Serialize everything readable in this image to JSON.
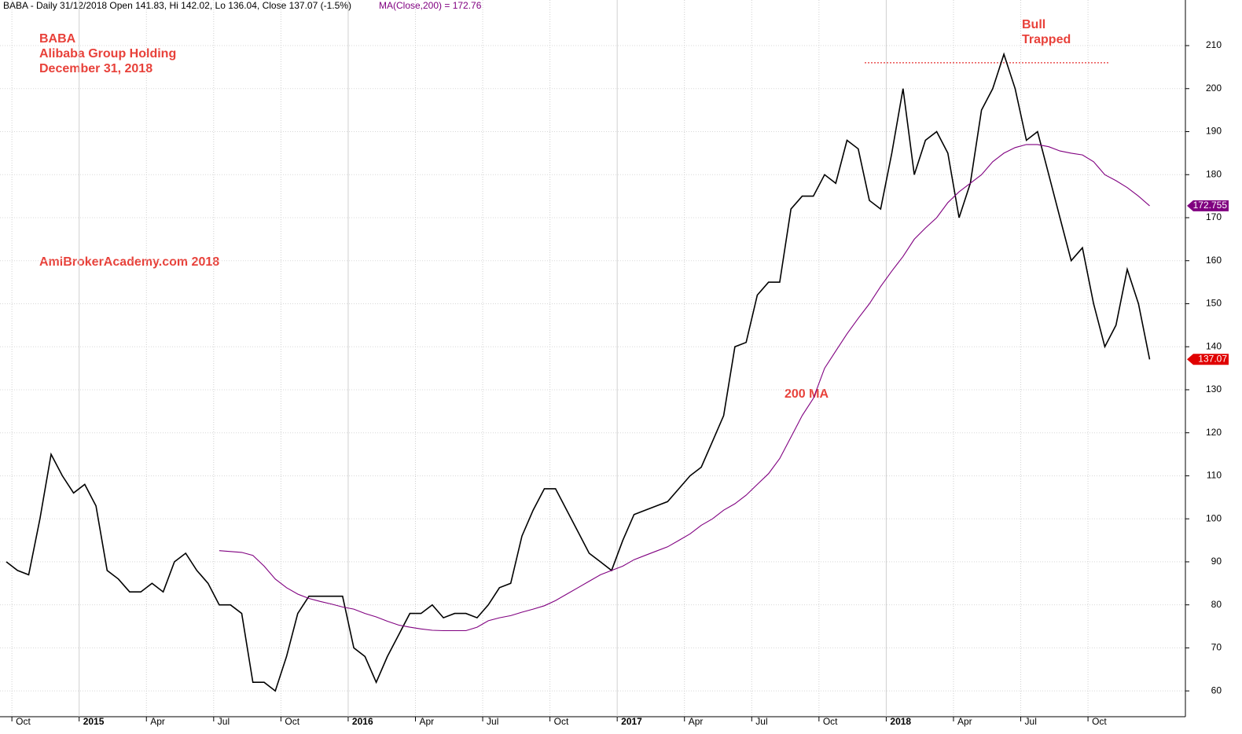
{
  "chart_data": {
    "type": "line",
    "header": "BABA - Daily 31/12/2018 Open 141.83, Hi 142.02, Lo 136.04, Close 137.07 (-1.5%)",
    "header_ma": "MA(Close,200) = 172.76",
    "header_ma_color": "#800080",
    "annotations": [
      "BABA",
      "Alibaba Group Holding",
      "December 31, 2018",
      "AmiBrokerAcademy.com  2018",
      "200 MA",
      "Bull",
      "Trapped"
    ],
    "annotation_color": "#e8413a",
    "resistance": 206,
    "categories": [
      null,
      "Oct",
      null,
      null,
      null,
      null,
      null,
      "2015",
      null,
      null,
      null,
      null,
      null,
      "Apr",
      null,
      null,
      null,
      null,
      null,
      "Jul",
      null,
      null,
      null,
      null,
      null,
      "Oct",
      null,
      null,
      null,
      null,
      null,
      "2016",
      null,
      null,
      null,
      null,
      null,
      "Apr",
      null,
      null,
      null,
      null,
      null,
      "Jul",
      null,
      null,
      null,
      null,
      null,
      "Oct",
      null,
      null,
      null,
      null,
      null,
      "2017",
      null,
      null,
      null,
      null,
      null,
      "Apr",
      null,
      null,
      null,
      null,
      null,
      "Jul",
      null,
      null,
      null,
      null,
      null,
      "Oct",
      null,
      null,
      null,
      null,
      null,
      "2018",
      null,
      null,
      null,
      null,
      null,
      "Apr",
      null,
      null,
      null,
      null,
      null,
      "Jul",
      null,
      null,
      null,
      null,
      null,
      "Oct",
      null,
      null,
      null,
      null,
      null
    ],
    "series": [
      {
        "color": "#000000",
        "values": [
          90,
          88,
          87,
          100,
          115,
          110,
          106,
          108,
          103,
          88,
          86,
          83,
          83,
          85,
          83,
          90,
          92,
          88,
          85,
          80,
          80,
          78,
          62,
          62,
          60,
          68,
          78,
          82,
          82,
          82,
          82,
          70,
          68,
          62,
          68,
          73,
          78,
          78,
          80,
          77,
          78,
          78,
          77,
          80,
          84,
          85,
          96,
          102,
          107,
          107,
          102,
          97,
          92,
          90,
          88,
          95,
          101,
          102,
          103,
          104,
          107,
          110,
          112,
          118,
          124,
          140,
          141,
          152,
          155,
          155,
          172,
          175,
          175,
          180,
          178,
          188,
          186,
          174,
          172,
          185,
          200,
          180,
          188,
          190,
          185,
          170,
          178,
          195,
          200,
          208,
          200,
          188,
          190,
          180,
          170,
          160,
          163,
          150,
          140,
          145,
          158,
          150,
          137.07
        ]
      },
      {
        "color": "#800080",
        "values": [
          null,
          null,
          null,
          null,
          null,
          null,
          null,
          null,
          null,
          null,
          null,
          null,
          null,
          null,
          null,
          null,
          null,
          null,
          null,
          92.6,
          92.4,
          92.2,
          91.5,
          89,
          86,
          84,
          82.5,
          81.5,
          80.8,
          80.2,
          79.5,
          79,
          78,
          77.2,
          76.2,
          75.3,
          74.8,
          74.4,
          74.1,
          74,
          74,
          74,
          74.8,
          76.3,
          77,
          77.5,
          78.3,
          79,
          79.8,
          81,
          82.5,
          84,
          85.5,
          87,
          88,
          89,
          90.5,
          91.5,
          92.5,
          93.5,
          95,
          96.5,
          98.5,
          100,
          102,
          103.5,
          105.5,
          108,
          110.5,
          114,
          119,
          124,
          128,
          135,
          139,
          143,
          146.6,
          150,
          154,
          157.6,
          161,
          165,
          167.6,
          170,
          173.5,
          176,
          178,
          180,
          183,
          185,
          186.3,
          187,
          187,
          186.5,
          185.5,
          185,
          184.6,
          183,
          180,
          178.6,
          177,
          175,
          172.76
        ]
      }
    ],
    "last_labels": [
      {
        "value": 172.755,
        "label": "172.755",
        "color": "#800080"
      },
      {
        "value": 137.07,
        "label": "137.07",
        "color": "#e00000"
      }
    ],
    "ylim": [
      54,
      220.6
    ],
    "yticks": [
      60,
      70,
      80,
      90,
      100,
      110,
      120,
      130,
      140,
      150,
      160,
      170,
      180,
      190,
      200,
      210
    ],
    "grid": true
  }
}
